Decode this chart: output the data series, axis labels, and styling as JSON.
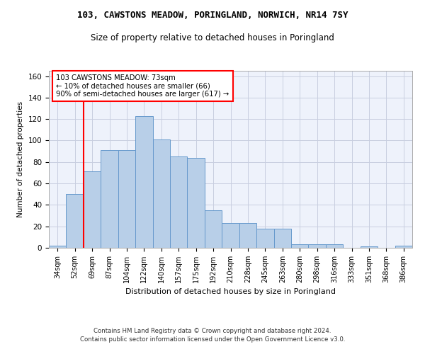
{
  "title1": "103, CAWSTONS MEADOW, PORINGLAND, NORWICH, NR14 7SY",
  "title2": "Size of property relative to detached houses in Poringland",
  "xlabel": "Distribution of detached houses by size in Poringland",
  "ylabel": "Number of detached properties",
  "categories": [
    "34sqm",
    "52sqm",
    "69sqm",
    "87sqm",
    "104sqm",
    "122sqm",
    "140sqm",
    "157sqm",
    "175sqm",
    "192sqm",
    "210sqm",
    "228sqm",
    "245sqm",
    "263sqm",
    "280sqm",
    "298sqm",
    "316sqm",
    "333sqm",
    "351sqm",
    "368sqm",
    "386sqm"
  ],
  "values": [
    2,
    50,
    71,
    91,
    91,
    123,
    101,
    85,
    84,
    35,
    23,
    23,
    18,
    18,
    3,
    3,
    3,
    0,
    1,
    0,
    2
  ],
  "bar_color": "#b8cfe8",
  "bar_edge_color": "#6699cc",
  "annotation_text": "103 CAWSTONS MEADOW: 73sqm\n← 10% of detached houses are smaller (66)\n90% of semi-detached houses are larger (617) →",
  "ylim": [
    0,
    165
  ],
  "yticks": [
    0,
    20,
    40,
    60,
    80,
    100,
    120,
    140,
    160
  ],
  "footer1": "Contains HM Land Registry data © Crown copyright and database right 2024.",
  "footer2": "Contains public sector information licensed under the Open Government Licence v3.0.",
  "bg_color": "#eef2fb",
  "grid_color": "#c8cee0"
}
